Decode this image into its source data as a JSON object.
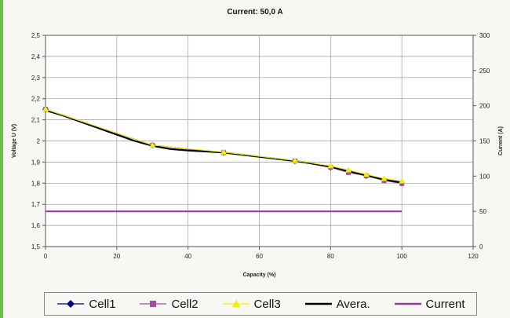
{
  "chart_data": {
    "type": "line",
    "title": "Current: 50,0 A",
    "xlabel": "Capacity (%)",
    "ylabel": "Voltage U (V)",
    "y2label": "Current (A)",
    "xlim": [
      0,
      120
    ],
    "ylim": [
      1.5,
      2.5
    ],
    "y2lim": [
      0,
      300
    ],
    "x_ticks": [
      "0",
      "20",
      "40",
      "60",
      "80",
      "100",
      "120"
    ],
    "y_ticks": [
      "1,5",
      "1,6",
      "1,7",
      "1,8",
      "1,9",
      "2",
      "2,1",
      "2,2",
      "2,3",
      "2,4",
      "2,5"
    ],
    "y2_ticks": [
      "0",
      "50",
      "100",
      "150",
      "200",
      "250",
      "300"
    ],
    "grid": true,
    "legend_position": "bottom",
    "series": [
      {
        "name": "Cell1",
        "color": "#000080",
        "marker": "diamond",
        "axis": "left",
        "x": [
          0,
          30,
          50,
          70,
          80,
          85,
          90,
          95,
          100
        ],
        "y": [
          2.15,
          1.98,
          1.945,
          1.905,
          1.875,
          1.855,
          1.835,
          1.815,
          1.8
        ]
      },
      {
        "name": "Cell2",
        "color": "#a050a0",
        "marker": "square",
        "axis": "left",
        "x": [
          0,
          30,
          50,
          70,
          80,
          85,
          90,
          95,
          100
        ],
        "y": [
          2.15,
          1.98,
          1.945,
          1.905,
          1.875,
          1.85,
          1.835,
          1.812,
          1.798
        ]
      },
      {
        "name": "Cell3",
        "color": "#f0f000",
        "marker": "triangle",
        "axis": "left",
        "x": [
          0,
          30,
          50,
          70,
          80,
          85,
          90,
          95,
          100
        ],
        "y": [
          2.15,
          1.98,
          1.947,
          1.907,
          1.882,
          1.862,
          1.842,
          1.822,
          1.81
        ]
      },
      {
        "name": "Avera.",
        "color": "#000000",
        "marker": "none",
        "axis": "left",
        "x": [
          0,
          5,
          10,
          15,
          20,
          25,
          30,
          35,
          40,
          45,
          50,
          55,
          60,
          65,
          70,
          75,
          80,
          85,
          90,
          95,
          100
        ],
        "y": [
          2.145,
          2.12,
          2.09,
          2.06,
          2.03,
          2.0,
          1.977,
          1.962,
          1.955,
          1.95,
          1.945,
          1.935,
          1.925,
          1.915,
          1.905,
          1.893,
          1.878,
          1.857,
          1.837,
          1.817,
          1.803
        ]
      },
      {
        "name": "Current",
        "color": "#9a3c9a",
        "marker": "none",
        "axis": "right",
        "x": [
          0,
          100
        ],
        "y": [
          50,
          50
        ]
      }
    ]
  }
}
